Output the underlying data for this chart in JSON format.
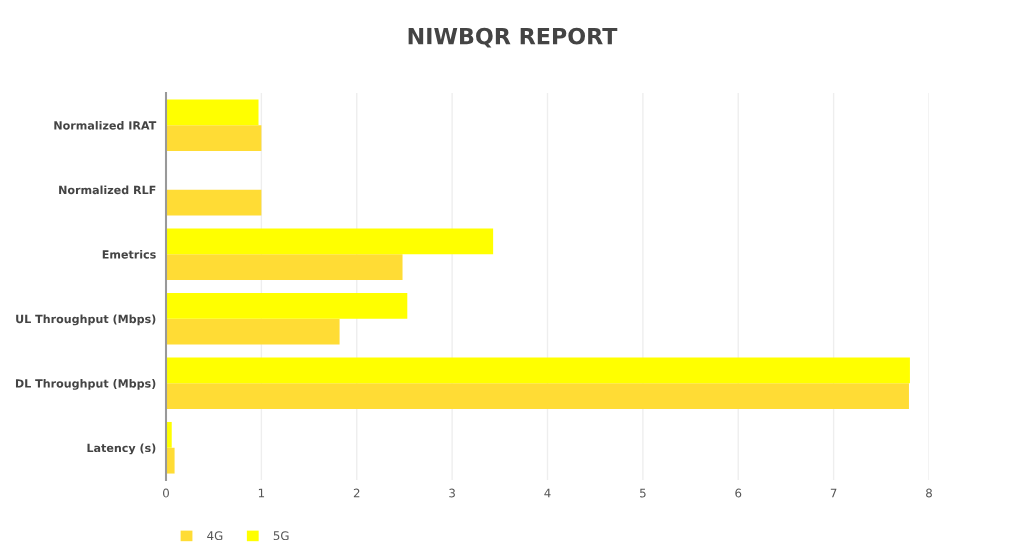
{
  "chart_data": {
    "type": "bar",
    "orientation": "horizontal",
    "title": "NIWBQR REPORT",
    "categories": [
      "Normalized IRAT",
      "Normalized RLF",
      "Emetrics",
      "UL Throughput (Mbps)",
      "DL Throughput (Mbps)",
      "Latency (s)"
    ],
    "series": [
      {
        "name": "4G",
        "color": "#ffdc35",
        "values": [
          1.0,
          1.0,
          2.48,
          1.82,
          7.79,
          0.09
        ]
      },
      {
        "name": "5G",
        "color": "#ffff00",
        "values": [
          0.97,
          null,
          3.43,
          2.53,
          7.8,
          0.06
        ]
      }
    ],
    "xlim": [
      0,
      8
    ],
    "xticks": [
      0,
      1,
      2,
      3,
      4,
      5,
      6,
      7,
      8
    ],
    "grid": "x",
    "legend": "bottom"
  }
}
